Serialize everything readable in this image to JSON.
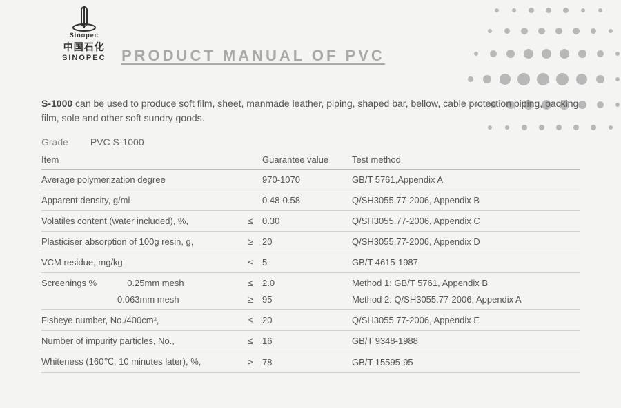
{
  "brand": {
    "cn": "中国石化",
    "en": "SINOPEC",
    "mark_under": "Sinopec"
  },
  "title": "PRODUCT  MANUAL  OF  PVC",
  "description": {
    "lead": "S-1000",
    "rest": " can be used to produce soft film, sheet, manmade leather, piping, shaped bar, bellow, cable protection piping, packing film, sole and other soft sundry goods."
  },
  "grade": {
    "label": "Grade",
    "value": "PVC S-1000"
  },
  "table": {
    "headers": {
      "item": "Item",
      "value": "Guarantee value",
      "method": "Test method"
    },
    "rows": [
      {
        "item": "Average polymerization degree",
        "op": "",
        "value": "970-1070",
        "method": "GB/T 5761,Appendix A"
      },
      {
        "item": "Apparent density, g/ml",
        "op": "",
        "value": "0.48-0.58",
        "method": "Q/SH3055.77-2006, Appendix B"
      },
      {
        "item": "Volatiles content (water included), %,",
        "op": "≤",
        "value": "0.30",
        "method": "Q/SH3055.77-2006, Appendix C"
      },
      {
        "item": "Plasticiser absorption of 100g resin, g,",
        "op": "≥",
        "value": "20",
        "method": "Q/SH3055.77-2006, Appendix D"
      },
      {
        "item": "VCM residue, mg/kg",
        "op": "≤",
        "value": "5",
        "method": "GB/T 4615-1987"
      },
      {
        "item": "Screenings %",
        "sub": "0.25mm mesh",
        "op": "≤",
        "value": "2.0",
        "method": "Method 1: GB/T 5761, Appendix B",
        "noborder": true
      },
      {
        "item": "",
        "sub": "0.063mm mesh",
        "op": "≥",
        "value": "95",
        "method": "Method 2: Q/SH3055.77-2006, Appendix A"
      },
      {
        "item": "Fisheye number, No./400cm²,",
        "op": "≤",
        "value": "20",
        "method": "Q/SH3055.77-2006, Appendix E"
      },
      {
        "item": "Number of impurity particles, No.,",
        "op": "≤",
        "value": "16",
        "method": "GB/T 9348-1988"
      },
      {
        "item": "Whiteness (160℃, 10 minutes later), %,",
        "op": "≥",
        "value": "78",
        "method": "GB/T 15595-95"
      }
    ]
  },
  "styling": {
    "page_bg": "#f4f4f2",
    "title_color": "#a9a9a9",
    "text_color": "#555555",
    "rule_color": "#d0d0d0",
    "dot_color": "#b8b8b8"
  }
}
